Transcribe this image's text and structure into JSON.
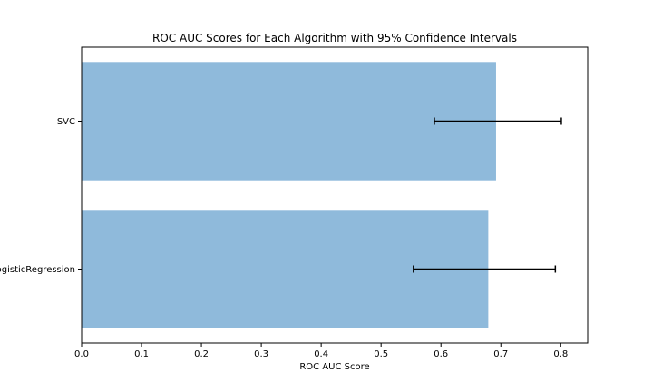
{
  "chart_data": {
    "type": "bar",
    "orientation": "horizontal",
    "title": "ROC AUC Scores for Each Algorithm with 95% Confidence Intervals",
    "xlabel": "ROC AUC Score",
    "ylabel": "",
    "categories": [
      "LogisticRegression",
      "SVC"
    ],
    "values": [
      0.679,
      0.692
    ],
    "ci_lower": [
      0.554,
      0.589
    ],
    "ci_upper": [
      0.791,
      0.801
    ],
    "xlim": [
      0.0,
      0.845
    ],
    "xticks": [
      "0.0",
      "0.1",
      "0.2",
      "0.3",
      "0.4",
      "0.5",
      "0.6",
      "0.7",
      "0.8"
    ],
    "grid": false,
    "legend": "none",
    "bar_color": "#8fbadb",
    "errorbar_color": "#000000"
  }
}
